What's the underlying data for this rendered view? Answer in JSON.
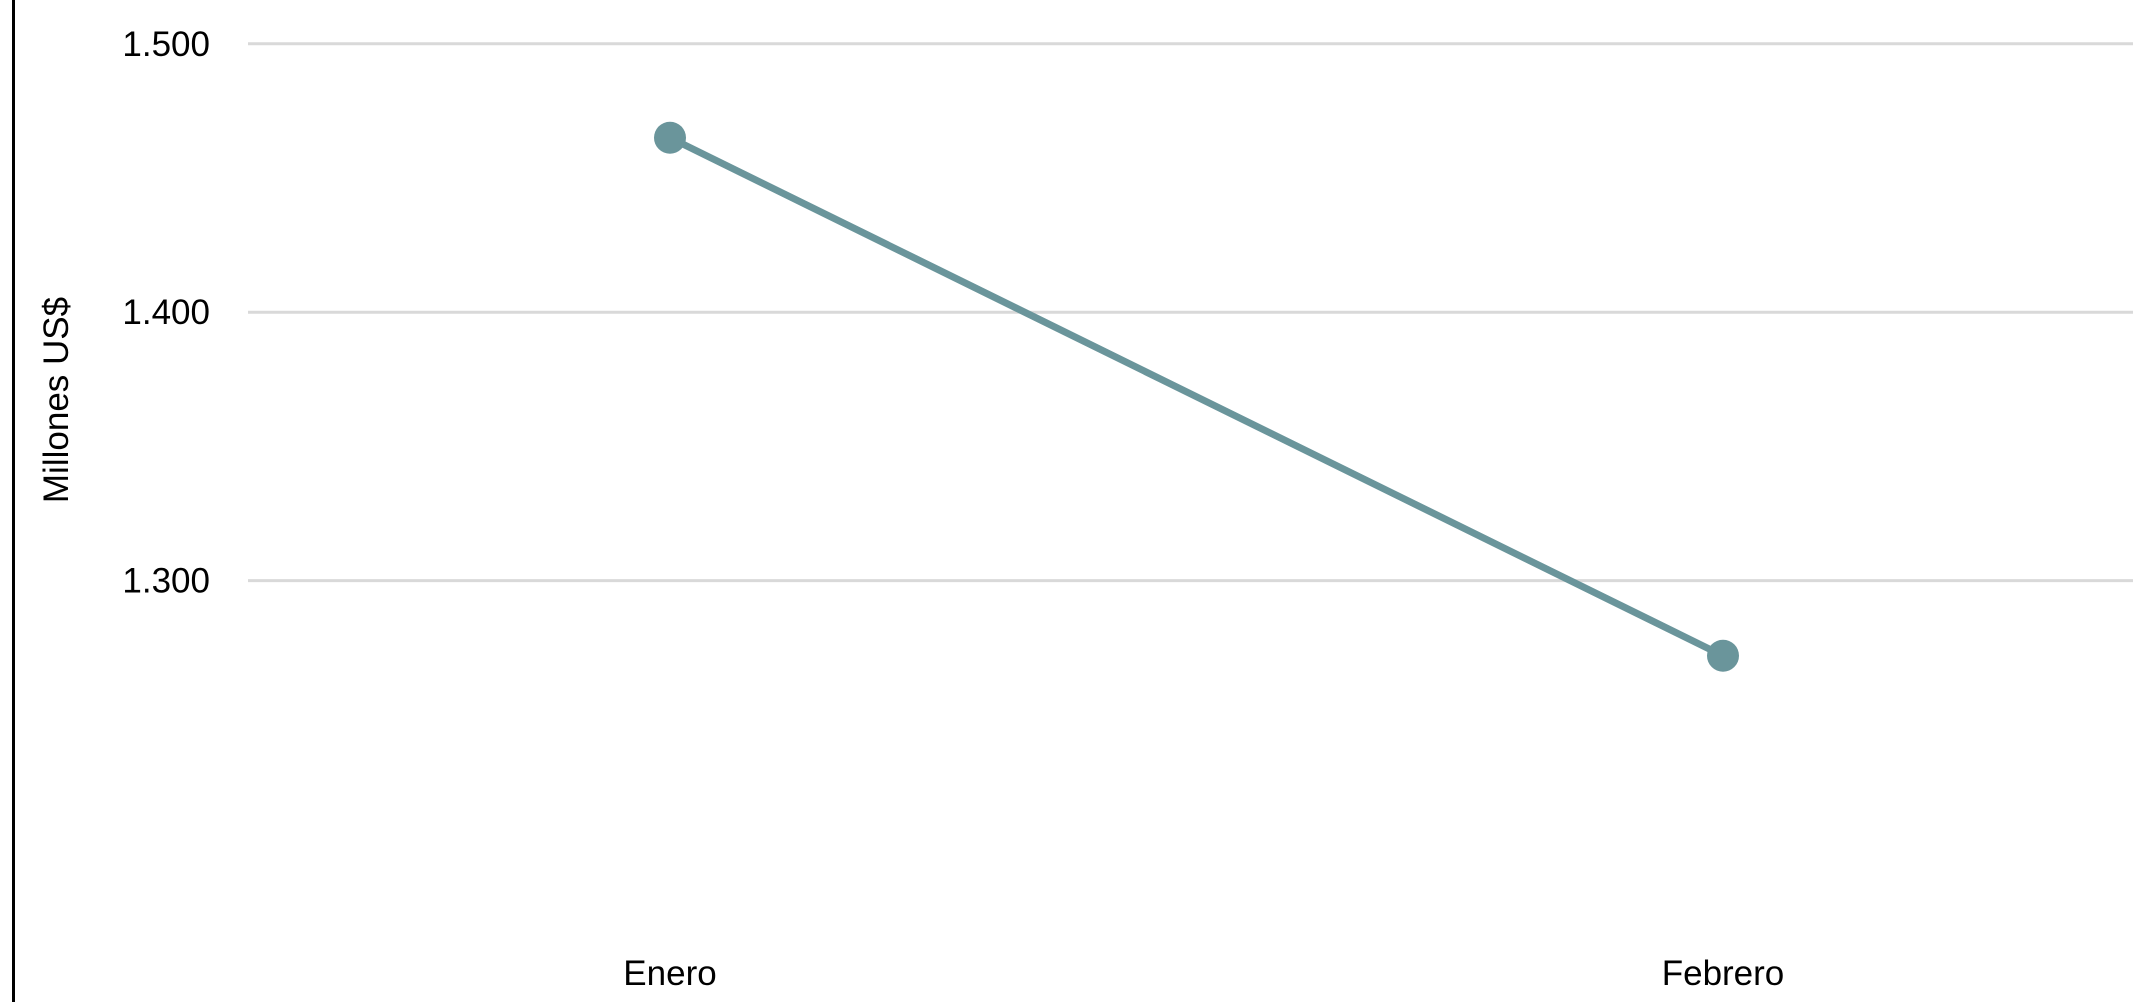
{
  "chart_data": {
    "type": "line",
    "title": "",
    "xlabel": "",
    "ylabel": "Millones US$",
    "categories": [
      "Enero",
      "Febrero"
    ],
    "series": [
      {
        "values": [
          1465,
          1272
        ],
        "color": "#6a959b"
      }
    ],
    "yticks": [
      1300,
      1400,
      1500
    ],
    "ytick_labels": [
      "1.300",
      "1.400",
      "1.500"
    ],
    "ylim": [
      1238,
      1507
    ],
    "grid": true,
    "legend": "none"
  }
}
